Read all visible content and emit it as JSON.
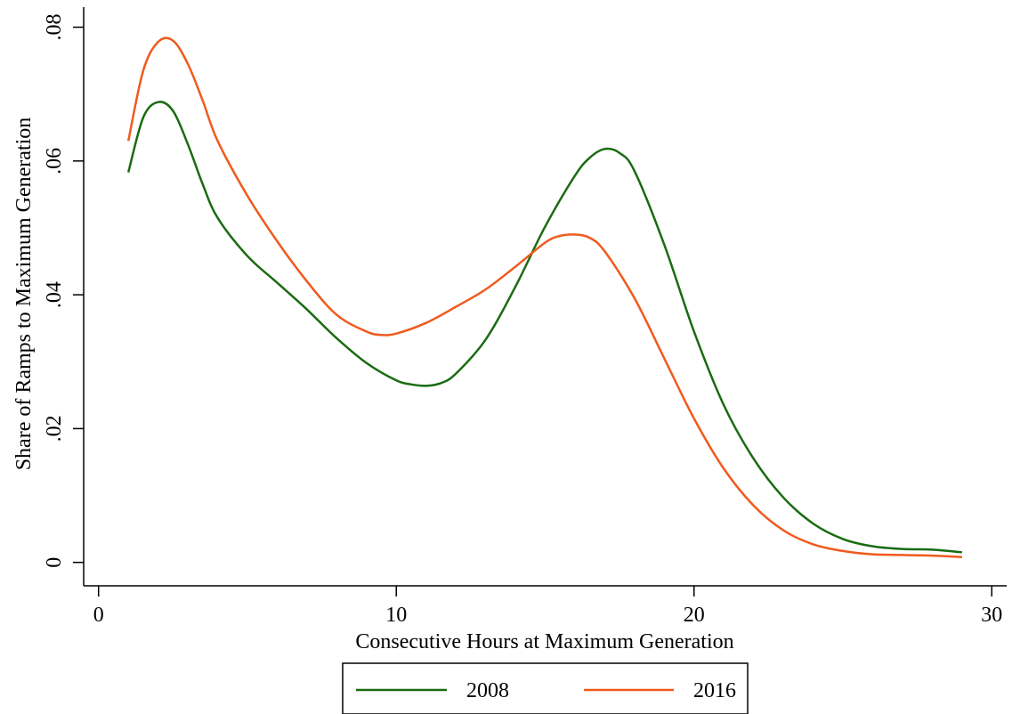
{
  "chart_data": {
    "type": "line",
    "title": "",
    "xlabel": "Consecutive Hours at Maximum Generation",
    "ylabel": "Share of Ramps to Maximum Generation",
    "xlim": [
      -0.5,
      30.5
    ],
    "ylim": [
      -0.0035,
      0.083
    ],
    "xticks": [
      0,
      10,
      20,
      30
    ],
    "xtick_labels": [
      "0",
      "10",
      "20",
      "30"
    ],
    "yticks": [
      0,
      0.02,
      0.04,
      0.06,
      0.08
    ],
    "ytick_labels": [
      "0",
      ".02",
      ".04",
      ".06",
      ".08"
    ],
    "grid": false,
    "legend": {
      "position": "bottom-center",
      "entries": [
        "2008",
        "2016"
      ]
    },
    "series": [
      {
        "name": "2008",
        "color": "#1a6b12",
        "x": [
          1,
          1.5,
          2,
          2.5,
          3,
          3.5,
          4,
          5,
          6,
          7,
          8,
          9,
          10,
          10.5,
          11,
          11.5,
          12,
          13,
          14,
          15,
          16,
          16.5,
          17,
          17.5,
          18,
          19,
          20,
          21,
          22,
          23,
          24,
          25,
          26,
          27,
          28,
          29
        ],
        "y": [
          0.0583,
          0.0665,
          0.0688,
          0.0675,
          0.0625,
          0.0565,
          0.0515,
          0.0458,
          0.0418,
          0.0378,
          0.0335,
          0.0298,
          0.0272,
          0.0266,
          0.0264,
          0.0268,
          0.0282,
          0.0333,
          0.0412,
          0.0502,
          0.0578,
          0.0605,
          0.0618,
          0.0612,
          0.0585,
          0.0475,
          0.0345,
          0.0235,
          0.0155,
          0.0097,
          0.0058,
          0.0035,
          0.0024,
          0.002,
          0.0019,
          0.0015
        ]
      },
      {
        "name": "2016",
        "color": "#f05a1e",
        "x": [
          1,
          1.5,
          2,
          2.5,
          3,
          3.5,
          4,
          5,
          6,
          7,
          8,
          9,
          9.5,
          10,
          11,
          12,
          13,
          14,
          15,
          15.5,
          16,
          16.5,
          17,
          18,
          19,
          20,
          21,
          22,
          23,
          24,
          25,
          26,
          27,
          28,
          29
        ],
        "y": [
          0.063,
          0.0735,
          0.0778,
          0.078,
          0.0745,
          0.069,
          0.063,
          0.0548,
          0.048,
          0.042,
          0.037,
          0.0345,
          0.034,
          0.0342,
          0.0358,
          0.0382,
          0.0408,
          0.0442,
          0.0478,
          0.0488,
          0.049,
          0.0485,
          0.0465,
          0.0395,
          0.0305,
          0.0215,
          0.014,
          0.0085,
          0.0048,
          0.0027,
          0.0017,
          0.0012,
          0.0011,
          0.001,
          0.0008
        ]
      }
    ]
  }
}
